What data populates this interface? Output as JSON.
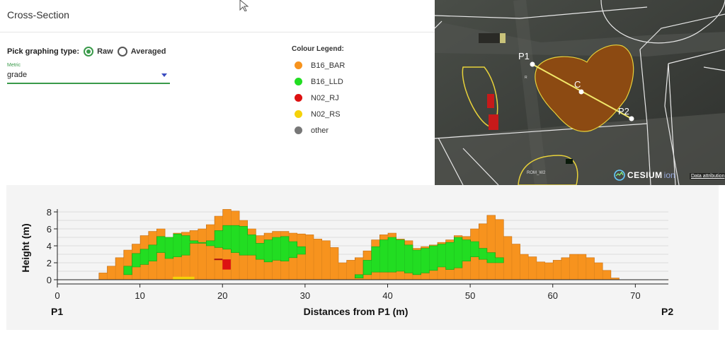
{
  "panel": {
    "title": "Cross-Section",
    "graph_type_label": "Pick graphing type:",
    "options": [
      {
        "label": "Raw",
        "selected": true
      },
      {
        "label": "Averaged",
        "selected": false
      }
    ],
    "metric_label": "Metric",
    "metric_value": "grade"
  },
  "legend": {
    "title": "Colour Legend:",
    "items": [
      {
        "label": "B16_BAR",
        "color": "#f7931e"
      },
      {
        "label": "B16_LLD",
        "color": "#22dd22"
      },
      {
        "label": "N02_RJ",
        "color": "#dd1111"
      },
      {
        "label": "N02_RS",
        "color": "#f5d20a"
      },
      {
        "label": "other",
        "color": "#777777"
      }
    ]
  },
  "map": {
    "point_p1": "P1",
    "point_c": "C",
    "point_p2": "P2",
    "label_rom": "ROM_W2",
    "label_r": "R",
    "cesium_logo": "CESIUM",
    "cesium_ion": "ion",
    "attribution": "Data attribution"
  },
  "chart_data": {
    "type": "area",
    "xlabel": "Distances from P1 (m)",
    "ylabel": "Height (m)",
    "xlim": [
      0,
      74
    ],
    "ylim": [
      0,
      8
    ],
    "x_ticks": [
      0,
      10,
      20,
      30,
      40,
      50,
      60,
      70
    ],
    "y_ticks": [
      0,
      2,
      4,
      6,
      8
    ],
    "grid": true,
    "left_end_label": "P1",
    "right_end_label": "P2",
    "x": [
      0,
      1,
      2,
      3,
      4,
      5,
      6,
      7,
      8,
      9,
      10,
      11,
      12,
      13,
      14,
      15,
      16,
      17,
      18,
      19,
      20,
      21,
      22,
      23,
      24,
      25,
      26,
      27,
      28,
      29,
      30,
      31,
      32,
      33,
      34,
      35,
      36,
      37,
      38,
      39,
      40,
      41,
      42,
      43,
      44,
      45,
      46,
      47,
      48,
      49,
      50,
      51,
      52,
      53,
      54,
      55,
      56,
      57,
      58,
      59,
      60,
      61,
      62,
      63,
      64,
      65,
      66,
      67,
      68,
      69,
      70,
      71,
      72,
      73,
      74
    ],
    "total_height": [
      0,
      0,
      0,
      0,
      0,
      0.8,
      1.6,
      2.6,
      3.5,
      4.2,
      5.2,
      5.7,
      6.0,
      5.0,
      5.5,
      5.6,
      5.8,
      6.0,
      6.5,
      7.5,
      8.3,
      8.1,
      7.0,
      6.0,
      5.2,
      5.5,
      5.7,
      5.7,
      5.5,
      5.4,
      5.3,
      4.8,
      4.6,
      3.8,
      2.0,
      2.3,
      2.6,
      3.4,
      4.7,
      5.3,
      5.5,
      4.8,
      4.6,
      3.7,
      3.9,
      4.1,
      4.4,
      4.7,
      5.2,
      5.1,
      6.0,
      6.6,
      7.6,
      7.1,
      5.1,
      4.2,
      3.0,
      2.7,
      2.1,
      2.0,
      2.3,
      2.6,
      3.0,
      3.0,
      2.6,
      2.0,
      1.1,
      0.2,
      0,
      0,
      0,
      0,
      0,
      0,
      0
    ],
    "series": [
      {
        "name": "B16_BAR",
        "bottom": [
          0,
          0,
          0,
          0,
          0,
          0,
          0,
          0,
          0,
          0,
          0,
          0,
          0,
          0,
          0,
          0,
          0,
          0,
          0,
          0,
          0,
          0,
          0,
          0,
          0,
          0,
          0,
          0,
          0,
          0,
          0,
          0,
          0,
          0,
          0,
          0,
          0,
          0,
          0,
          0,
          0,
          0,
          0,
          0,
          0,
          0,
          0,
          0,
          0,
          0,
          0,
          0,
          0,
          0,
          0,
          0,
          0,
          0,
          0,
          0,
          0,
          0,
          0,
          0,
          0,
          0,
          0,
          0,
          0,
          0,
          0,
          0,
          0,
          0,
          0
        ]
      },
      {
        "name": "B16_LLD",
        "lower": [
          0,
          0,
          0,
          0,
          0,
          0,
          0,
          0,
          0.6,
          1.5,
          1.8,
          2.2,
          3.2,
          2.5,
          2.7,
          2.9,
          4.3,
          4.3,
          4.0,
          3.8,
          3.6,
          3.2,
          2.9,
          2.9,
          2.4,
          2.1,
          2.3,
          2.2,
          2.6,
          3.0,
          0,
          0,
          0,
          0,
          0,
          0,
          0.2,
          0.6,
          0.9,
          0.9,
          0.9,
          1.0,
          0.8,
          0.6,
          0.8,
          1.1,
          1.5,
          1.2,
          1.4,
          2.2,
          2.7,
          2.4,
          2.0,
          2.0,
          0,
          0,
          0,
          0,
          0,
          0,
          0,
          0,
          0,
          0,
          0,
          0,
          0,
          0,
          0,
          0,
          0,
          0,
          0,
          0,
          0
        ],
        "upper": [
          0,
          0,
          0,
          0,
          0,
          0,
          0,
          0,
          1.6,
          3.1,
          3.6,
          4.1,
          5.1,
          5.0,
          5.4,
          5.2,
          4.6,
          4.4,
          4.6,
          5.8,
          6.4,
          6.4,
          6.3,
          5.3,
          4.3,
          4.7,
          5.0,
          5.1,
          4.5,
          3.9,
          0,
          0,
          0,
          0,
          0,
          0,
          0.6,
          2.3,
          3.9,
          4.7,
          5.0,
          4.7,
          4.1,
          3.5,
          3.7,
          4.0,
          4.2,
          4.4,
          5.0,
          4.7,
          4.5,
          3.7,
          3.2,
          2.6,
          0,
          0,
          0,
          0,
          0,
          0,
          0,
          0,
          0,
          0,
          0,
          0,
          0,
          0,
          0,
          0,
          0,
          0,
          0,
          0,
          0
        ]
      },
      {
        "name": "N02_RJ",
        "x": [
          20.0,
          21.0
        ],
        "y": [
          2.2,
          2.2
        ]
      },
      {
        "name": "N02_RS",
        "x": [
          14.0,
          16.6
        ],
        "y": [
          0.2,
          0.2
        ]
      }
    ]
  }
}
